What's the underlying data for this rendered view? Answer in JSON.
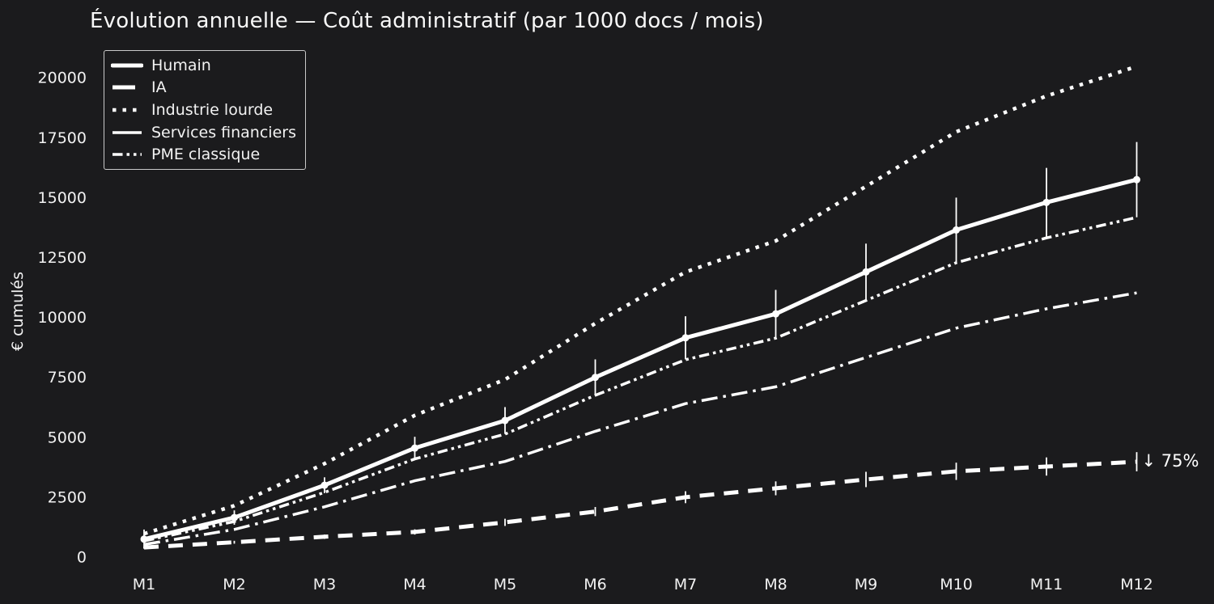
{
  "app": {
    "background_color": "#1b1b1d",
    "text_color": "#f2f2f2",
    "line_color": "#ffffff"
  },
  "chart_data": {
    "type": "line",
    "title": "Évolution annuelle — Coût administratif (par 1000 docs / mois)",
    "ylabel": "€ cumulés",
    "xlabel": "",
    "categories": [
      "M1",
      "M2",
      "M3",
      "M4",
      "M5",
      "M6",
      "M7",
      "M8",
      "M9",
      "M10",
      "M11",
      "M12"
    ],
    "y_ticks": [
      0,
      2500,
      5000,
      7500,
      10000,
      12500,
      15000,
      17500,
      20000
    ],
    "ylim": [
      -450,
      21400
    ],
    "grid": false,
    "legend_position": "upper left",
    "series": [
      {
        "name": "Humain",
        "linestyle": "solid",
        "linewidth": 5,
        "marker": "circle",
        "values": [
          750,
          1650,
          3000,
          4550,
          5700,
          7500,
          9150,
          10150,
          11900,
          13650,
          14800,
          15750
        ],
        "error": [
          400,
          300,
          330,
          470,
          560,
          750,
          900,
          1000,
          1180,
          1350,
          1440,
          1570
        ]
      },
      {
        "name": "IA",
        "linestyle": "dashed",
        "linewidth": 5,
        "marker": "none",
        "values": [
          400,
          620,
          850,
          1050,
          1450,
          1900,
          2500,
          2870,
          3240,
          3580,
          3780,
          3980
        ],
        "error": [
          40,
          60,
          90,
          110,
          150,
          190,
          250,
          290,
          320,
          360,
          380,
          400
        ]
      },
      {
        "name": "Industrie lourde",
        "linestyle": "dotted",
        "linewidth": 4.5,
        "marker": "none",
        "values": [
          975,
          2145,
          3900,
          5915,
          7410,
          9750,
          11895,
          13195,
          15470,
          17745,
          19240,
          20475
        ],
        "error": []
      },
      {
        "name": "Services financiers",
        "linestyle": "dashdot",
        "linewidth": 3.5,
        "marker": "none",
        "values": [
          525,
          1155,
          2100,
          3185,
          3990,
          5250,
          6405,
          7105,
          8330,
          9555,
          10360,
          11025
        ],
        "error": []
      },
      {
        "name": "PME classique",
        "linestyle": "dashdotdot",
        "linewidth": 3.5,
        "marker": "none",
        "values": [
          675,
          1485,
          2700,
          4095,
          5130,
          6750,
          8235,
          9135,
          10710,
          12285,
          13320,
          14175
        ],
        "error": []
      }
    ],
    "annotation": {
      "text": "↓ 75%",
      "at_category": "M12",
      "at_value": 4000
    }
  }
}
